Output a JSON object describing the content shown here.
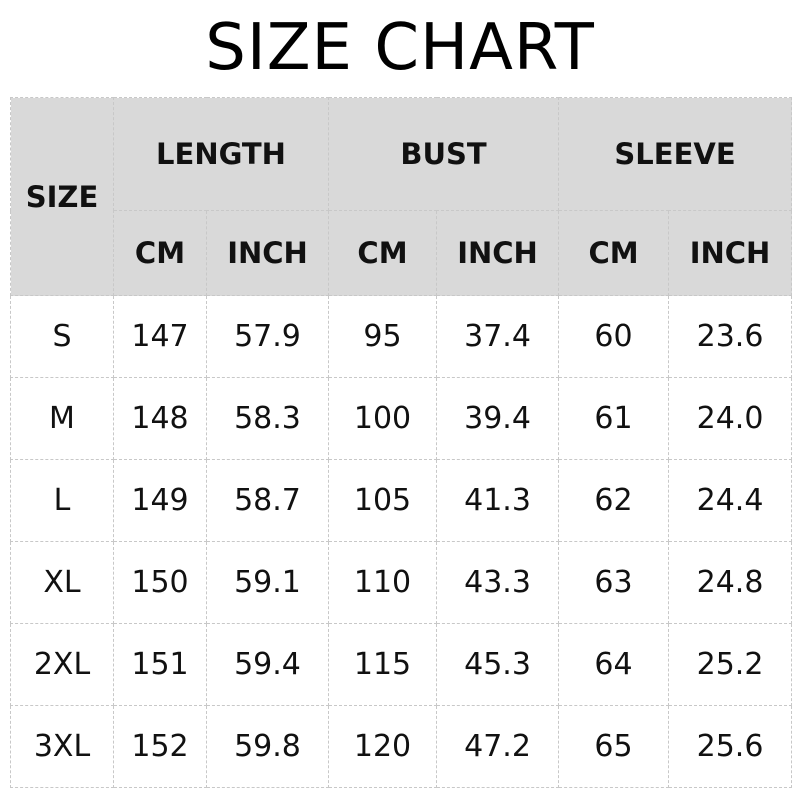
{
  "title": "SIZE CHART",
  "header": {
    "size": "SIZE",
    "groups": [
      "LENGTH",
      "BUST",
      "SLEEVE"
    ],
    "units": [
      "CM",
      "INCH",
      "CM",
      "INCH",
      "CM",
      "INCH"
    ]
  },
  "rows": [
    [
      "S",
      "147",
      "57.9",
      "95",
      "37.4",
      "60",
      "23.6"
    ],
    [
      "M",
      "148",
      "58.3",
      "100",
      "39.4",
      "61",
      "24.0"
    ],
    [
      "L",
      "149",
      "58.7",
      "105",
      "41.3",
      "62",
      "24.4"
    ],
    [
      "XL",
      "150",
      "59.1",
      "110",
      "43.3",
      "63",
      "24.8"
    ],
    [
      "2XL",
      "151",
      "59.4",
      "115",
      "45.3",
      "64",
      "25.2"
    ],
    [
      "3XL",
      "152",
      "59.8",
      "120",
      "47.2",
      "65",
      "25.6"
    ]
  ],
  "colors": {
    "header_bg": "#d9d9d9",
    "border": "#c8c8c8"
  }
}
